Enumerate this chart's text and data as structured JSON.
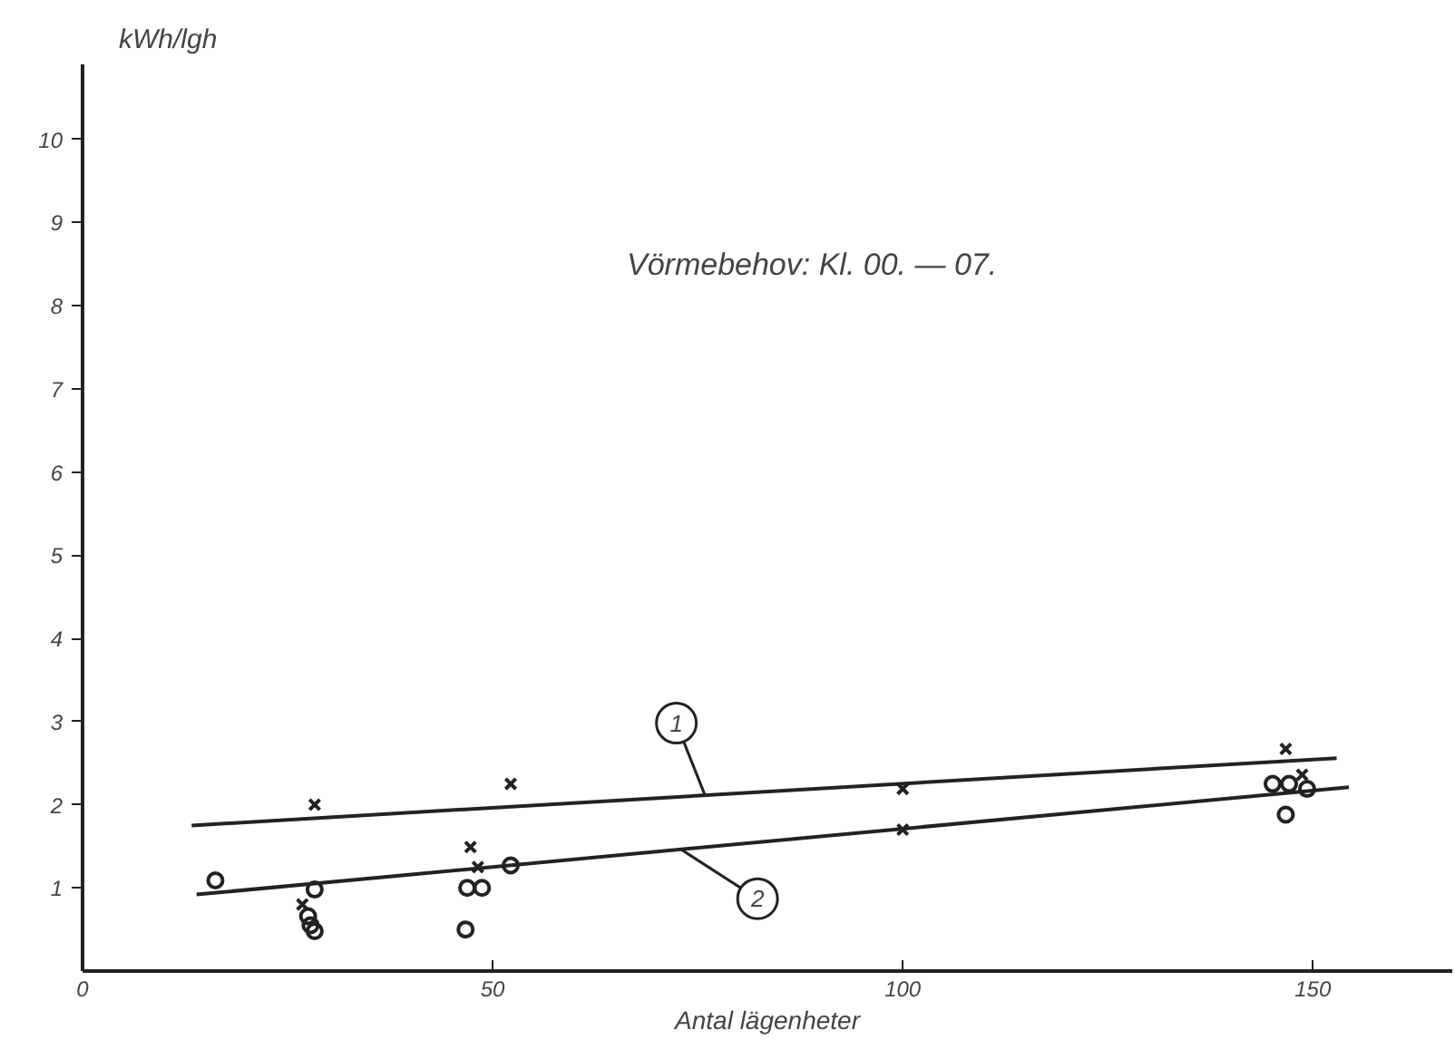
{
  "chart_data": {
    "type": "scatter",
    "title": "Vörmebehov: Kl. 00. — 07.",
    "xlabel": "Antal lägenheter",
    "ylabel": "kWh/lgh",
    "xlim": [
      0,
      167
    ],
    "ylim": [
      0,
      10.9
    ],
    "xticks": [
      0,
      50,
      100,
      150
    ],
    "yticks": [
      1,
      2,
      3,
      4,
      5,
      6,
      7,
      8,
      9,
      10
    ],
    "grid": false,
    "series": [
      {
        "marker": "cross",
        "color": "#222222",
        "x": [
          28.3,
          52.2,
          47.3,
          48.2,
          100,
          100,
          146.7,
          148.7,
          26.8
        ],
        "values": [
          2.0,
          2.25,
          1.49,
          1.25,
          2.19,
          1.7,
          2.67,
          2.36,
          0.8
        ]
      },
      {
        "marker": "circle",
        "color": "#222222",
        "x": [
          16.2,
          28.3,
          27.5,
          27.8,
          28.3,
          46.9,
          48.7,
          46.7,
          52.2,
          145.1,
          147.1,
          149.3,
          146.7
        ],
        "values": [
          1.09,
          0.98,
          0.66,
          0.55,
          0.48,
          1.0,
          1.0,
          0.5,
          1.27,
          2.25,
          2.25,
          2.19,
          1.88
        ]
      },
      {
        "type": "line",
        "marker": "none",
        "line_style": "solid",
        "color": "#222222",
        "x": [
          13.3,
          152.9
        ],
        "values": [
          1.75,
          2.56
        ]
      },
      {
        "type": "line",
        "marker": "none",
        "line_style": "solid",
        "color": "#222222",
        "x": [
          13.9,
          154.4
        ],
        "values": [
          0.92,
          2.21
        ]
      }
    ],
    "annotations": [
      {
        "text": "1",
        "x": 75.9,
        "y": 2.11
      },
      {
        "text": "2",
        "x": 73,
        "y": 1.46
      }
    ]
  }
}
